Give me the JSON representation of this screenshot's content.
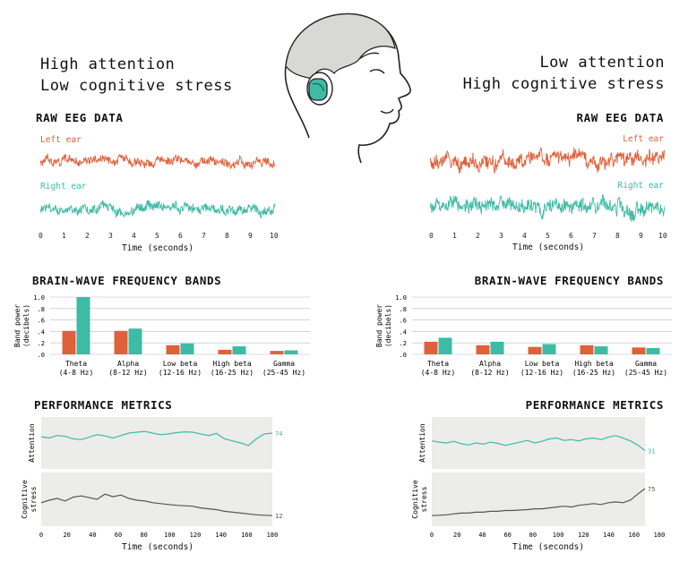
{
  "colors": {
    "left": "#e0603a",
    "right": "#3dbba5",
    "panel": "#ececea",
    "stress": "#555555",
    "axis": "#222222"
  },
  "left": {
    "heading": [
      "High attention",
      "Low cognitive stress"
    ],
    "raw_title": "RAW EEG DATA",
    "left_ear": "Left ear",
    "right_ear": "Right ear",
    "time_ticks": [
      "0",
      "1",
      "2",
      "3",
      "4",
      "5",
      "6",
      "7",
      "8",
      "9",
      "10"
    ],
    "time_label": "Time (seconds)",
    "bands_title": "BRAIN-WAVE FREQUENCY BANDS",
    "perf_title": "PERFORMANCE METRICS",
    "attention_label": "Attention",
    "stress_label": [
      "Cognitive",
      "stress"
    ],
    "attention_value": "74",
    "stress_value": "12",
    "metric_ticks": [
      "0",
      "20",
      "40",
      "60",
      "80",
      "100",
      "120",
      "140",
      "160",
      "180"
    ],
    "metric_time_label": "Time (seconds)"
  },
  "right": {
    "heading": [
      "Low attention",
      "High cognitive stress"
    ],
    "raw_title": "RAW EEG DATA",
    "left_ear": "Left ear",
    "right_ear": "Right ear",
    "time_ticks": [
      "0",
      "1",
      "2",
      "3",
      "4",
      "5",
      "6",
      "7",
      "8",
      "9",
      "10"
    ],
    "time_label": "Time (seconds)",
    "bands_title": "BRAIN-WAVE FREQUENCY BANDS",
    "perf_title": "PERFORMANCE METRICS",
    "attention_label": "Attention",
    "stress_label": [
      "Cognitive",
      "stress"
    ],
    "attention_value": "31",
    "stress_value": "75",
    "metric_ticks": [
      "0",
      "20",
      "40",
      "60",
      "80",
      "100",
      "120",
      "140",
      "160",
      "180"
    ],
    "metric_time_label": "Time (seconds)"
  },
  "chart_data": [
    {
      "type": "line",
      "title": "RAW EEG DATA",
      "panel": "left",
      "xlabel": "Time (seconds)",
      "xlim": [
        0,
        10
      ],
      "series": [
        {
          "name": "Left ear",
          "amplitude": "low"
        },
        {
          "name": "Right ear",
          "amplitude": "low"
        }
      ]
    },
    {
      "type": "bar",
      "title": "BRAIN-WAVE FREQUENCY BANDS",
      "panel": "left",
      "ylabel": "Band power (decibels)",
      "ylim": [
        0,
        1.0
      ],
      "yticks": [
        "1.0",
        ".8",
        ".6",
        ".4",
        ".2",
        ".0"
      ],
      "categories": [
        "Theta (4-8 Hz)",
        "Alpha (8-12 Hz)",
        "Low beta (12-16 Hz)",
        "High beta (16-25 Hz)",
        "Gamma (25-45 Hz)"
      ],
      "series": [
        {
          "name": "Left ear",
          "values": [
            0.41,
            0.41,
            0.16,
            0.08,
            0.06
          ]
        },
        {
          "name": "Right ear",
          "values": [
            1.0,
            0.45,
            0.19,
            0.14,
            0.07
          ]
        }
      ]
    },
    {
      "type": "line",
      "title": "PERFORMANCE METRICS",
      "panel": "left",
      "xlabel": "Time (seconds)",
      "xlim": [
        0,
        180
      ],
      "series": [
        {
          "name": "Attention",
          "values": [
            65,
            62,
            68,
            66,
            60,
            58,
            64,
            70,
            67,
            62,
            68,
            74,
            76,
            78,
            74,
            70,
            72,
            75,
            77,
            76,
            72,
            68,
            73,
            60,
            55,
            50,
            44,
            60,
            72,
            74
          ]
        },
        {
          "name": "Cognitive stress",
          "values": [
            42,
            48,
            52,
            46,
            55,
            58,
            54,
            50,
            62,
            56,
            60,
            52,
            48,
            46,
            42,
            40,
            38,
            36,
            35,
            34,
            30,
            28,
            26,
            22,
            20,
            18,
            16,
            14,
            13,
            12
          ]
        }
      ]
    },
    {
      "type": "line",
      "title": "RAW EEG DATA",
      "panel": "right",
      "xlabel": "Time (seconds)",
      "xlim": [
        0,
        10
      ],
      "series": [
        {
          "name": "Left ear",
          "amplitude": "high"
        },
        {
          "name": "Right ear",
          "amplitude": "high"
        }
      ]
    },
    {
      "type": "bar",
      "title": "BRAIN-WAVE FREQUENCY BANDS",
      "panel": "right",
      "ylabel": "Band power (decibels)",
      "ylim": [
        0,
        1.0
      ],
      "yticks": [
        "1.0",
        ".8",
        ".6",
        ".4",
        ".2",
        ".0"
      ],
      "categories": [
        "Theta (4-8 Hz)",
        "Alpha (8-12 Hz)",
        "Low beta (12-16 Hz)",
        "High beta (16-25 Hz)",
        "Gamma (25-45 Hz)"
      ],
      "series": [
        {
          "name": "Left ear",
          "values": [
            0.22,
            0.16,
            0.13,
            0.16,
            0.12
          ]
        },
        {
          "name": "Right ear",
          "values": [
            0.29,
            0.22,
            0.18,
            0.14,
            0.11
          ]
        }
      ]
    },
    {
      "type": "line",
      "title": "PERFORMANCE METRICS",
      "panel": "right",
      "xlabel": "Time (seconds)",
      "xlim": [
        0,
        180
      ],
      "series": [
        {
          "name": "Attention",
          "values": [
            55,
            52,
            50,
            54,
            48,
            45,
            50,
            47,
            52,
            49,
            44,
            48,
            52,
            56,
            50,
            54,
            60,
            62,
            56,
            58,
            55,
            60,
            62,
            58,
            64,
            68,
            62,
            55,
            45,
            31
          ]
        },
        {
          "name": "Cognitive stress",
          "values": [
            12,
            13,
            14,
            16,
            18,
            18,
            20,
            20,
            22,
            22,
            24,
            24,
            25,
            26,
            28,
            28,
            30,
            32,
            34,
            32,
            36,
            38,
            40,
            38,
            42,
            44,
            42,
            48,
            62,
            75
          ]
        }
      ]
    }
  ]
}
